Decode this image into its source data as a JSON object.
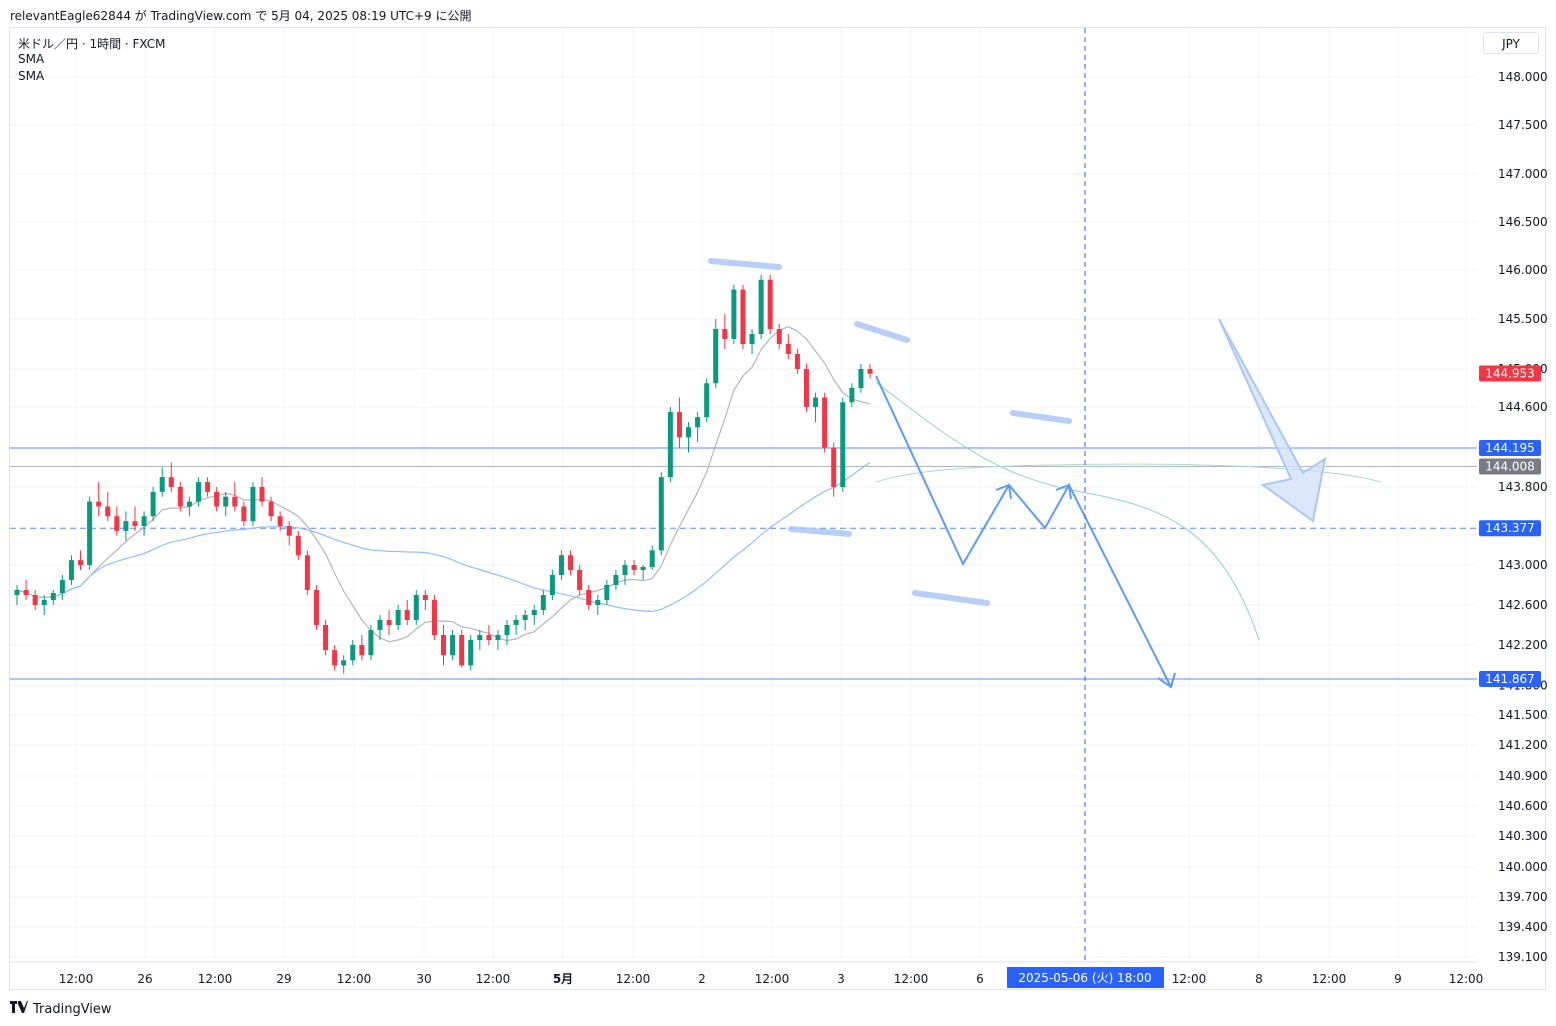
{
  "header": {
    "text": "relevantEagle62844 が TradingView.com で 5月 04, 2025 08:19 UTC+9 に公開"
  },
  "legend": {
    "symbol": "米ドル／円 · 1時間 · FXCM",
    "indicators": [
      "SMA",
      "SMA"
    ]
  },
  "currency": "JPY",
  "footer": {
    "brand": "TradingView",
    "logo_icon": "tradingview-logo-icon"
  },
  "colors": {
    "up": "#089981",
    "down": "#f23645",
    "grid": "#f0f3fa",
    "sma_short": "#b2b5be",
    "sma_long": "#90bff9",
    "drawing": "#5b9cf6",
    "badge_blue": "#2962ff",
    "badge_gray": "#787b86",
    "badge_red": "#f23645"
  },
  "chart_data": {
    "type": "candlestick",
    "y_ticks": [
      "148.000",
      "147.500",
      "147.000",
      "146.500",
      "146.000",
      "145.500",
      "145.000",
      "144.600",
      "143.800",
      "143.000",
      "142.600",
      "142.200",
      "141.800",
      "141.500",
      "141.200",
      "140.900",
      "140.600",
      "140.300",
      "140.000",
      "139.700",
      "139.400",
      "139.100"
    ],
    "x_ticks": [
      "12:00",
      "26",
      "12:00",
      "29",
      "12:00",
      "30",
      "12:00",
      "5月",
      "12:00",
      "2",
      "12:00",
      "3",
      "12:00",
      "6",
      "12:00",
      "8",
      "12:00",
      "9",
      "12:00"
    ],
    "series": [
      {
        "name": "SMA",
        "kind": "sma-short"
      },
      {
        "name": "SMA",
        "kind": "sma-long"
      }
    ],
    "price_badges": [
      {
        "label": "144.953",
        "value": 144.953,
        "style": "red"
      },
      {
        "label": "144.195",
        "value": 144.195,
        "style": "blue"
      },
      {
        "label": "144.008",
        "value": 144.008,
        "style": "gray"
      },
      {
        "label": "143.377",
        "value": 143.377,
        "style": "blue"
      },
      {
        "label": "141.867",
        "value": 141.867,
        "style": "blue"
      }
    ],
    "horizontal_lines": [
      {
        "value": 144.195,
        "style": "solid-blue"
      },
      {
        "value": 144.008,
        "style": "solid-gray"
      },
      {
        "value": 143.377,
        "style": "dashed-blue"
      },
      {
        "value": 141.867,
        "style": "solid-blue"
      }
    ],
    "crosshair_label": "2025-05-06 (火)   18:00",
    "candles_approx": [
      [
        142.7,
        142.8,
        142.6,
        142.75
      ],
      [
        142.75,
        142.85,
        142.65,
        142.7
      ],
      [
        142.7,
        142.75,
        142.55,
        142.6
      ],
      [
        142.6,
        142.7,
        142.5,
        142.65
      ],
      [
        142.65,
        142.75,
        142.6,
        142.72
      ],
      [
        142.72,
        142.9,
        142.65,
        142.85
      ],
      [
        142.85,
        143.1,
        142.8,
        143.05
      ],
      [
        143.05,
        143.15,
        142.95,
        143.0
      ],
      [
        143.0,
        143.7,
        142.95,
        143.65
      ],
      [
        143.65,
        143.85,
        143.5,
        143.6
      ],
      [
        143.6,
        143.75,
        143.45,
        143.5
      ],
      [
        143.5,
        143.6,
        143.3,
        143.35
      ],
      [
        143.35,
        143.55,
        143.25,
        143.45
      ],
      [
        143.45,
        143.6,
        143.35,
        143.4
      ],
      [
        143.4,
        143.55,
        143.3,
        143.5
      ],
      [
        143.5,
        143.8,
        143.45,
        143.75
      ],
      [
        143.75,
        144.0,
        143.7,
        143.9
      ],
      [
        143.9,
        144.05,
        143.75,
        143.8
      ],
      [
        143.8,
        143.85,
        143.55,
        143.6
      ],
      [
        143.6,
        143.7,
        143.5,
        143.65
      ],
      [
        143.65,
        143.9,
        143.6,
        143.85
      ],
      [
        143.85,
        143.9,
        143.7,
        143.75
      ],
      [
        143.75,
        143.8,
        143.55,
        143.6
      ],
      [
        143.6,
        143.75,
        143.5,
        143.7
      ],
      [
        143.7,
        143.85,
        143.55,
        143.6
      ],
      [
        143.6,
        143.65,
        143.4,
        143.45
      ],
      [
        143.45,
        143.85,
        143.4,
        143.8
      ],
      [
        143.8,
        143.9,
        143.6,
        143.65
      ],
      [
        143.65,
        143.7,
        143.45,
        143.5
      ],
      [
        143.5,
        143.55,
        143.35,
        143.4
      ],
      [
        143.4,
        143.45,
        143.2,
        143.3
      ],
      [
        143.3,
        143.35,
        143.05,
        143.1
      ],
      [
        143.1,
        143.15,
        142.7,
        142.75
      ],
      [
        142.75,
        142.8,
        142.35,
        142.4
      ],
      [
        142.4,
        142.45,
        142.1,
        142.15
      ],
      [
        142.15,
        142.2,
        141.95,
        142.0
      ],
      [
        142.0,
        142.1,
        141.92,
        142.05
      ],
      [
        142.05,
        142.25,
        142.0,
        142.2
      ],
      [
        142.2,
        142.3,
        142.05,
        142.1
      ],
      [
        142.1,
        142.4,
        142.05,
        142.35
      ],
      [
        142.35,
        142.5,
        142.25,
        142.45
      ],
      [
        142.45,
        142.55,
        142.3,
        142.4
      ],
      [
        142.4,
        142.6,
        142.35,
        142.55
      ],
      [
        142.55,
        142.65,
        142.4,
        142.45
      ],
      [
        142.45,
        142.75,
        142.4,
        142.7
      ],
      [
        142.7,
        142.75,
        142.55,
        142.65
      ],
      [
        142.65,
        142.7,
        142.25,
        142.3
      ],
      [
        142.3,
        142.4,
        142.0,
        142.1
      ],
      [
        142.1,
        142.35,
        142.05,
        142.3
      ],
      [
        142.3,
        142.35,
        141.98,
        142.0
      ],
      [
        142.0,
        142.3,
        141.95,
        142.25
      ],
      [
        142.25,
        142.35,
        142.15,
        142.3
      ],
      [
        142.3,
        142.4,
        142.2,
        142.25
      ],
      [
        142.25,
        142.35,
        142.15,
        142.3
      ],
      [
        142.3,
        142.45,
        142.2,
        142.4
      ],
      [
        142.4,
        142.5,
        142.3,
        142.45
      ],
      [
        142.45,
        142.55,
        142.35,
        142.5
      ],
      [
        142.5,
        142.6,
        142.4,
        142.55
      ],
      [
        142.55,
        142.75,
        142.5,
        142.7
      ],
      [
        142.7,
        142.95,
        142.65,
        142.9
      ],
      [
        142.9,
        143.15,
        142.85,
        143.1
      ],
      [
        143.1,
        143.15,
        142.9,
        142.95
      ],
      [
        142.95,
        143.0,
        142.7,
        142.75
      ],
      [
        142.75,
        142.8,
        142.55,
        142.6
      ],
      [
        142.6,
        142.7,
        142.5,
        142.65
      ],
      [
        142.65,
        142.85,
        142.6,
        142.8
      ],
      [
        142.8,
        142.95,
        142.75,
        142.9
      ],
      [
        142.9,
        143.05,
        142.8,
        143.0
      ],
      [
        143.0,
        143.05,
        142.9,
        142.95
      ],
      [
        142.95,
        143.0,
        142.85,
        142.98
      ],
      [
        142.98,
        143.2,
        142.95,
        143.15
      ],
      [
        143.15,
        143.95,
        143.1,
        143.9
      ],
      [
        143.9,
        144.6,
        143.85,
        144.55
      ],
      [
        144.55,
        144.7,
        144.2,
        144.3
      ],
      [
        144.3,
        144.45,
        144.15,
        144.4
      ],
      [
        144.4,
        144.55,
        144.25,
        144.5
      ],
      [
        144.5,
        144.9,
        144.45,
        144.85
      ],
      [
        144.85,
        145.5,
        144.8,
        145.4
      ],
      [
        145.4,
        145.55,
        145.2,
        145.3
      ],
      [
        145.3,
        145.85,
        145.25,
        145.8
      ],
      [
        145.8,
        145.85,
        145.2,
        145.25
      ],
      [
        145.25,
        145.4,
        145.15,
        145.35
      ],
      [
        145.35,
        145.95,
        145.3,
        145.9
      ],
      [
        145.9,
        145.95,
        145.35,
        145.4
      ],
      [
        145.4,
        145.45,
        145.2,
        145.25
      ],
      [
        145.25,
        145.35,
        145.1,
        145.15
      ],
      [
        145.15,
        145.2,
        144.95,
        145.0
      ],
      [
        145.0,
        145.05,
        144.55,
        144.6
      ],
      [
        144.6,
        144.75,
        144.45,
        144.7
      ],
      [
        144.7,
        144.75,
        144.15,
        144.2
      ],
      [
        144.2,
        144.25,
        143.7,
        143.8
      ],
      [
        143.8,
        144.7,
        143.75,
        144.65
      ],
      [
        144.65,
        144.85,
        144.6,
        144.8
      ],
      [
        144.8,
        145.05,
        144.75,
        145.0
      ],
      [
        145.0,
        145.05,
        144.9,
        144.95
      ]
    ]
  }
}
